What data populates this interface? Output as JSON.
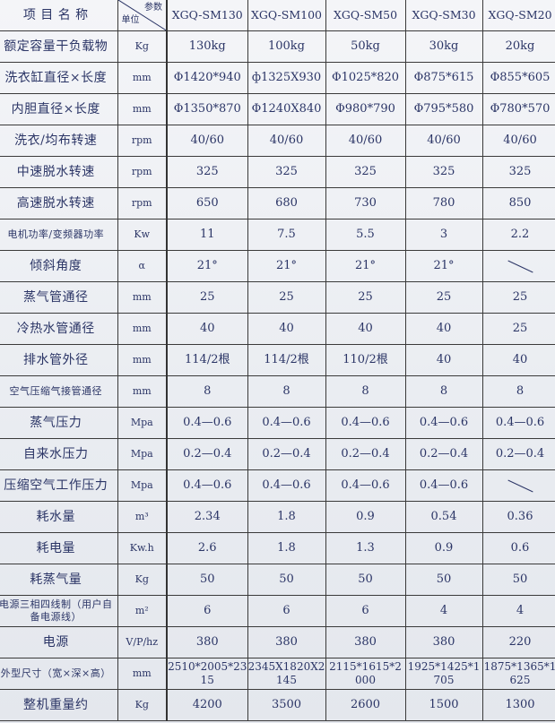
{
  "header": {
    "item_name": "项 目 名 称",
    "param_label": "参数",
    "unit_label": "单位",
    "models": [
      "XGQ-SM130",
      "XGQ-SM100",
      "XGQ-SM50",
      "XGQ-SM30",
      "XGQ-SM20"
    ]
  },
  "rows": [
    {
      "name": "额定容量干负载物",
      "unit": "Kg",
      "values": [
        "130kg",
        "100kg",
        "50kg",
        "30kg",
        "20kg"
      ]
    },
    {
      "name": "洗衣缸直径×长度",
      "unit": "mm",
      "values": [
        "Φ1420*940",
        "ф1325X930",
        "Φ1025*820",
        "Φ875*615",
        "Φ855*605"
      ]
    },
    {
      "name": "内胆直径×长度",
      "unit": "mm",
      "values": [
        "Φ1350*870",
        "Φ1240X840",
        "Φ980*790",
        "Φ795*580",
        "Φ780*570"
      ]
    },
    {
      "name": "洗衣/均布转速",
      "unit": "rpm",
      "values": [
        "40/60",
        "40/60",
        "40/60",
        "40/60",
        "40/60"
      ]
    },
    {
      "name": "中速脱水转速",
      "unit": "rpm",
      "values": [
        "325",
        "325",
        "325",
        "325",
        "325"
      ]
    },
    {
      "name": "高速脱水转速",
      "unit": "rpm",
      "values": [
        "650",
        "680",
        "730",
        "780",
        "850"
      ]
    },
    {
      "name": "电机功率/变频器功率",
      "unit": "Kw",
      "values": [
        "11",
        "7.5",
        "5.5",
        "3",
        "2.2"
      ],
      "small": true
    },
    {
      "name": "倾斜角度",
      "unit": "α",
      "values": [
        "21°",
        "21°",
        "21°",
        "21°",
        null
      ]
    },
    {
      "name": "蒸气管通径",
      "unit": "mm",
      "values": [
        "25",
        "25",
        "25",
        "25",
        "25"
      ]
    },
    {
      "name": "冷热水管通径",
      "unit": "mm",
      "values": [
        "40",
        "40",
        "40",
        "40",
        "25"
      ]
    },
    {
      "name": "排水管外径",
      "unit": "mm",
      "values": [
        "114/2根",
        "114/2根",
        "110/2根",
        "40",
        "40"
      ]
    },
    {
      "name": "空气压缩气接管通径",
      "unit": "mm",
      "values": [
        "8",
        "8",
        "8",
        "8",
        "8"
      ],
      "small": true
    },
    {
      "name": "蒸气压力",
      "unit": "Mpa",
      "values": [
        "0.4—0.6",
        "0.4—0.6",
        "0.4—0.6",
        "0.4—0.6",
        "0.4—0.6"
      ]
    },
    {
      "name": "自来水压力",
      "unit": "Mpa",
      "values": [
        "0.2—0.4",
        "0.2—0.4",
        "0.2—0.4",
        "0.2—0.4",
        "0.2—0.4"
      ]
    },
    {
      "name": "压缩空气工作压力",
      "unit": "Mpa",
      "values": [
        "0.4—0.6",
        "0.4—0.6",
        "0.4—0.6",
        "0.4—0.6",
        null
      ]
    },
    {
      "name": "耗水量",
      "unit": "m³",
      "values": [
        "2.34",
        "1.8",
        "0.9",
        "0.54",
        "0.36"
      ]
    },
    {
      "name": "耗电量",
      "unit": "Kw.h",
      "values": [
        "2.6",
        "1.8",
        "1.3",
        "0.9",
        "0.6"
      ]
    },
    {
      "name": "耗蒸气量",
      "unit": "Kg",
      "values": [
        "50",
        "50",
        "50",
        "50",
        "50"
      ]
    },
    {
      "name": "电源三相四线制（用户自备电源线）",
      "unit": "m²",
      "values": [
        "6",
        "6",
        "6",
        "4",
        "4"
      ],
      "small": true
    },
    {
      "name": "电源",
      "unit": "V/P/hz",
      "values": [
        "380",
        "380",
        "380",
        "380",
        "220"
      ]
    },
    {
      "name": "外型尺寸（宽×深×高）",
      "unit": "mm",
      "values": [
        "2510*2005*2315",
        "2345X1820X2145",
        "2115*1615*2000",
        "1925*1425*1705",
        "1875*1365*1625"
      ],
      "small": true,
      "wrapvals": true
    },
    {
      "name": "整机重量约",
      "unit": "Kg",
      "values": [
        "4200",
        "3500",
        "2600",
        "1500",
        "1300"
      ]
    }
  ]
}
